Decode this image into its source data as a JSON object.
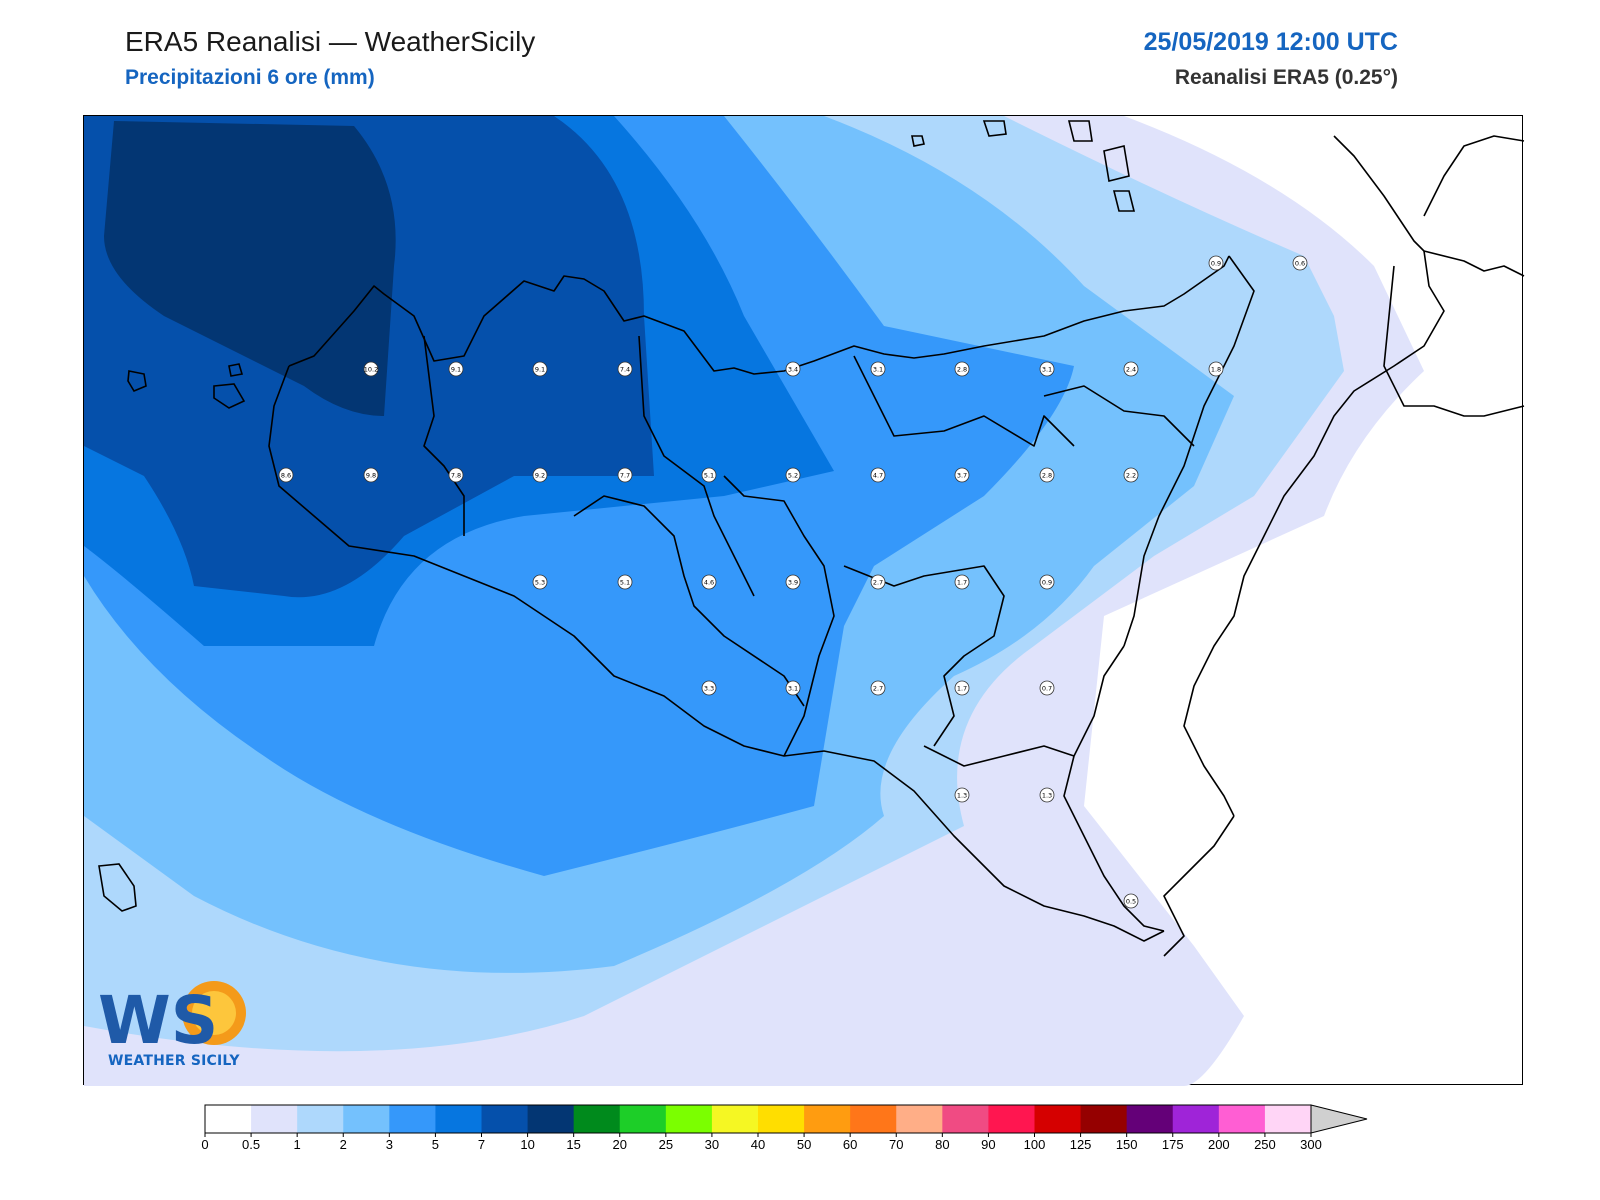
{
  "header": {
    "title": "ERA5 Reanalisi — WeatherSicily",
    "subtitle": "Precipitazioni 6 ore (mm)",
    "datetime": "25/05/2019 12:00 UTC",
    "dataset": "Reanalisi ERA5 (0.25°)"
  },
  "logo": {
    "monogram": "WS",
    "caption": "WEATHER SICILY"
  },
  "station_values": [
    {
      "label": "0.9"
    },
    {
      "label": "0.6"
    },
    {
      "label": "10.2"
    },
    {
      "label": "9.1"
    },
    {
      "label": "9.1"
    },
    {
      "label": "7.4"
    },
    {
      "label": "3.4"
    },
    {
      "label": "3.1"
    },
    {
      "label": "2.8"
    },
    {
      "label": "3.1"
    },
    {
      "label": "2.4"
    },
    {
      "label": "1.8"
    },
    {
      "label": "8.6"
    },
    {
      "label": "9.8"
    },
    {
      "label": "7.8"
    },
    {
      "label": "9.2"
    },
    {
      "label": "7.7"
    },
    {
      "label": "5.1"
    },
    {
      "label": "5.2"
    },
    {
      "label": "4.7"
    },
    {
      "label": "3.7"
    },
    {
      "label": "2.8"
    },
    {
      "label": "2.2"
    },
    {
      "label": "5.3"
    },
    {
      "label": "5.1"
    },
    {
      "label": "4.6"
    },
    {
      "label": "3.9"
    },
    {
      "label": "2.7"
    },
    {
      "label": "1.7"
    },
    {
      "label": "0.9"
    },
    {
      "label": "3.3"
    },
    {
      "label": "3.1"
    },
    {
      "label": "2.7"
    },
    {
      "label": "1.7"
    },
    {
      "label": "0.7"
    },
    {
      "label": "1.3"
    },
    {
      "label": "1.3"
    },
    {
      "label": "0.5"
    }
  ],
  "colorbar": {
    "ticks": [
      "0",
      "0.5",
      "1",
      "2",
      "3",
      "5",
      "7",
      "10",
      "15",
      "20",
      "25",
      "30",
      "40",
      "50",
      "60",
      "70",
      "80",
      "90",
      "100",
      "125",
      "150",
      "175",
      "200",
      "250",
      "300"
    ],
    "colors": [
      "#ffffff",
      "#e0e3fb",
      "#aed8fc",
      "#74c1fd",
      "#3598fa",
      "#0676e0",
      "#0550ab",
      "#033673",
      "#008a1c",
      "#1dce28",
      "#7bff00",
      "#f5f723",
      "#ffde00",
      "#ff9c10",
      "#ff7619",
      "#ffae87",
      "#f04b83",
      "#ff1650",
      "#d50000",
      "#950000",
      "#640078",
      "#9f24d8",
      "#ff5ed3",
      "#ffd5f6"
    ],
    "extend_color": "#d0d0d0"
  }
}
